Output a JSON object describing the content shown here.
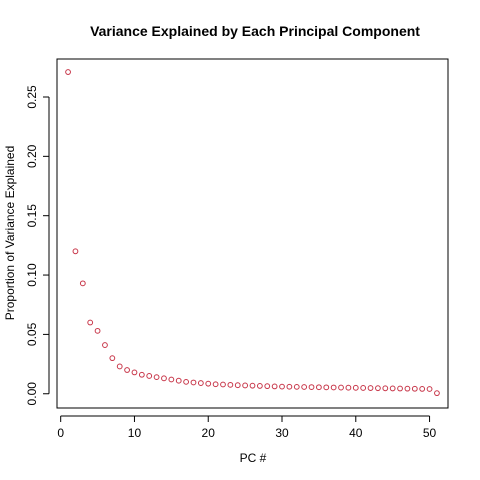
{
  "chart_data": {
    "type": "scatter",
    "title": "Variance Explained by Each Principal Component",
    "xlabel": "PC #",
    "ylabel": "Proportion of Variance Explained",
    "xlim": [
      -0.5,
      52.5
    ],
    "ylim": [
      -0.012,
      0.282
    ],
    "xticks": [
      0,
      10,
      20,
      30,
      40,
      50
    ],
    "yticks": [
      0.0,
      0.05,
      0.1,
      0.15,
      0.2,
      0.25
    ],
    "ytick_labels": [
      "0.00",
      "0.05",
      "0.10",
      "0.15",
      "0.20",
      "0.25"
    ],
    "grid": false,
    "marker": "open-circle",
    "point_color": "#c8374a",
    "x": [
      1,
      2,
      3,
      4,
      5,
      6,
      7,
      8,
      9,
      10,
      11,
      12,
      13,
      14,
      15,
      16,
      17,
      18,
      19,
      20,
      21,
      22,
      23,
      24,
      25,
      26,
      27,
      28,
      29,
      30,
      31,
      32,
      33,
      34,
      35,
      36,
      37,
      38,
      39,
      40,
      41,
      42,
      43,
      44,
      45,
      46,
      47,
      48,
      49,
      50,
      51
    ],
    "y": [
      0.271,
      0.12,
      0.093,
      0.06,
      0.053,
      0.041,
      0.03,
      0.023,
      0.02,
      0.018,
      0.016,
      0.015,
      0.014,
      0.013,
      0.012,
      0.011,
      0.01,
      0.0095,
      0.009,
      0.0085,
      0.008,
      0.0078,
      0.0075,
      0.0072,
      0.007,
      0.0068,
      0.0066,
      0.0064,
      0.0062,
      0.006,
      0.0059,
      0.0058,
      0.0057,
      0.0056,
      0.0055,
      0.0054,
      0.0053,
      0.0052,
      0.0051,
      0.005,
      0.0049,
      0.0048,
      0.0047,
      0.0046,
      0.0045,
      0.0044,
      0.0043,
      0.0042,
      0.0041,
      0.004,
      0.0005
    ]
  }
}
